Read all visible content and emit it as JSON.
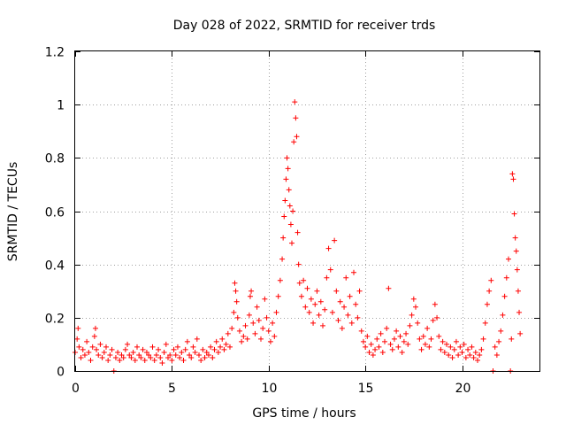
{
  "chart_data": {
    "type": "scatter",
    "title": "Day 028 of 2022, SRMTID for receiver trds",
    "xlabel": "GPS time / hours",
    "ylabel": "SRMTID / TECUs",
    "xlim": [
      0,
      24
    ],
    "ylim": [
      0,
      1.2
    ],
    "x_ticks": [
      0,
      5,
      10,
      15,
      20
    ],
    "x_tick_labels": [
      "0",
      "5",
      "10",
      "15",
      "20"
    ],
    "y_ticks": [
      0,
      0.2,
      0.4,
      0.6,
      0.8,
      1.0,
      1.2
    ],
    "y_tick_labels": [
      "0",
      "0.2",
      "0.4",
      "0.6",
      "0.8",
      "1",
      "1.2"
    ],
    "grid": true,
    "marker": "+",
    "series": [
      {
        "name": "SRMTID",
        "color": "#ff0000",
        "points": [
          [
            0.0,
            0.07
          ],
          [
            0.1,
            0.12
          ],
          [
            0.15,
            0.16
          ],
          [
            0.2,
            0.09
          ],
          [
            0.3,
            0.05
          ],
          [
            0.4,
            0.08
          ],
          [
            0.5,
            0.06
          ],
          [
            0.6,
            0.11
          ],
          [
            0.7,
            0.07
          ],
          [
            0.8,
            0.04
          ],
          [
            0.9,
            0.09
          ],
          [
            1.0,
            0.13
          ],
          [
            1.05,
            0.16
          ],
          [
            1.1,
            0.08
          ],
          [
            1.2,
            0.06
          ],
          [
            1.3,
            0.1
          ],
          [
            1.4,
            0.05
          ],
          [
            1.5,
            0.07
          ],
          [
            1.6,
            0.09
          ],
          [
            1.7,
            0.04
          ],
          [
            1.8,
            0.06
          ],
          [
            1.9,
            0.08
          ],
          [
            2.0,
            0.0
          ],
          [
            2.1,
            0.05
          ],
          [
            2.2,
            0.07
          ],
          [
            2.3,
            0.04
          ],
          [
            2.4,
            0.06
          ],
          [
            2.5,
            0.05
          ],
          [
            2.6,
            0.08
          ],
          [
            2.7,
            0.1
          ],
          [
            2.8,
            0.06
          ],
          [
            2.9,
            0.05
          ],
          [
            3.0,
            0.07
          ],
          [
            3.1,
            0.04
          ],
          [
            3.2,
            0.09
          ],
          [
            3.3,
            0.06
          ],
          [
            3.4,
            0.05
          ],
          [
            3.5,
            0.08
          ],
          [
            3.6,
            0.04
          ],
          [
            3.7,
            0.07
          ],
          [
            3.8,
            0.06
          ],
          [
            3.9,
            0.05
          ],
          [
            4.0,
            0.09
          ],
          [
            4.1,
            0.04
          ],
          [
            4.2,
            0.06
          ],
          [
            4.3,
            0.08
          ],
          [
            4.4,
            0.05
          ],
          [
            4.5,
            0.03
          ],
          [
            4.6,
            0.07
          ],
          [
            4.7,
            0.1
          ],
          [
            4.8,
            0.05
          ],
          [
            4.9,
            0.06
          ],
          [
            5.0,
            0.04
          ],
          [
            5.1,
            0.08
          ],
          [
            5.2,
            0.06
          ],
          [
            5.3,
            0.09
          ],
          [
            5.4,
            0.05
          ],
          [
            5.5,
            0.07
          ],
          [
            5.6,
            0.04
          ],
          [
            5.7,
            0.08
          ],
          [
            5.8,
            0.11
          ],
          [
            5.9,
            0.06
          ],
          [
            6.0,
            0.05
          ],
          [
            6.1,
            0.09
          ],
          [
            6.2,
            0.07
          ],
          [
            6.3,
            0.12
          ],
          [
            6.4,
            0.06
          ],
          [
            6.5,
            0.04
          ],
          [
            6.6,
            0.08
          ],
          [
            6.7,
            0.05
          ],
          [
            6.8,
            0.07
          ],
          [
            6.9,
            0.06
          ],
          [
            7.0,
            0.09
          ],
          [
            7.1,
            0.05
          ],
          [
            7.2,
            0.08
          ],
          [
            7.3,
            0.11
          ],
          [
            7.4,
            0.07
          ],
          [
            7.5,
            0.09
          ],
          [
            7.6,
            0.12
          ],
          [
            7.7,
            0.08
          ],
          [
            7.8,
            0.1
          ],
          [
            7.9,
            0.14
          ],
          [
            8.0,
            0.09
          ],
          [
            8.1,
            0.16
          ],
          [
            8.2,
            0.22
          ],
          [
            8.25,
            0.33
          ],
          [
            8.3,
            0.3
          ],
          [
            8.35,
            0.26
          ],
          [
            8.4,
            0.2
          ],
          [
            8.5,
            0.15
          ],
          [
            8.6,
            0.11
          ],
          [
            8.7,
            0.13
          ],
          [
            8.8,
            0.17
          ],
          [
            8.9,
            0.12
          ],
          [
            9.0,
            0.21
          ],
          [
            9.05,
            0.28
          ],
          [
            9.1,
            0.3
          ],
          [
            9.2,
            0.18
          ],
          [
            9.3,
            0.14
          ],
          [
            9.4,
            0.24
          ],
          [
            9.5,
            0.19
          ],
          [
            9.6,
            0.12
          ],
          [
            9.7,
            0.16
          ],
          [
            9.8,
            0.27
          ],
          [
            9.9,
            0.2
          ],
          [
            10.0,
            0.15
          ],
          [
            10.1,
            0.11
          ],
          [
            10.2,
            0.18
          ],
          [
            10.3,
            0.13
          ],
          [
            10.4,
            0.22
          ],
          [
            10.5,
            0.28
          ],
          [
            10.6,
            0.34
          ],
          [
            10.7,
            0.42
          ],
          [
            10.75,
            0.5
          ],
          [
            10.8,
            0.58
          ],
          [
            10.85,
            0.64
          ],
          [
            10.9,
            0.72
          ],
          [
            10.95,
            0.8
          ],
          [
            11.0,
            0.76
          ],
          [
            11.05,
            0.68
          ],
          [
            11.1,
            0.62
          ],
          [
            11.15,
            0.55
          ],
          [
            11.2,
            0.48
          ],
          [
            11.25,
            0.6
          ],
          [
            11.3,
            0.86
          ],
          [
            11.35,
            1.01
          ],
          [
            11.4,
            0.95
          ],
          [
            11.45,
            0.88
          ],
          [
            11.5,
            0.52
          ],
          [
            11.55,
            0.4
          ],
          [
            11.6,
            0.33
          ],
          [
            11.7,
            0.28
          ],
          [
            11.8,
            0.34
          ],
          [
            11.9,
            0.24
          ],
          [
            12.0,
            0.31
          ],
          [
            12.1,
            0.22
          ],
          [
            12.2,
            0.27
          ],
          [
            12.3,
            0.18
          ],
          [
            12.4,
            0.25
          ],
          [
            12.5,
            0.3
          ],
          [
            12.6,
            0.21
          ],
          [
            12.7,
            0.26
          ],
          [
            12.8,
            0.17
          ],
          [
            12.9,
            0.23
          ],
          [
            13.0,
            0.35
          ],
          [
            13.1,
            0.46
          ],
          [
            13.2,
            0.38
          ],
          [
            13.3,
            0.22
          ],
          [
            13.4,
            0.49
          ],
          [
            13.5,
            0.3
          ],
          [
            13.6,
            0.19
          ],
          [
            13.7,
            0.26
          ],
          [
            13.8,
            0.16
          ],
          [
            13.9,
            0.24
          ],
          [
            14.0,
            0.35
          ],
          [
            14.1,
            0.21
          ],
          [
            14.2,
            0.28
          ],
          [
            14.3,
            0.18
          ],
          [
            14.4,
            0.37
          ],
          [
            14.5,
            0.25
          ],
          [
            14.6,
            0.2
          ],
          [
            14.7,
            0.3
          ],
          [
            14.8,
            0.15
          ],
          [
            14.9,
            0.11
          ],
          [
            15.0,
            0.09
          ],
          [
            15.1,
            0.13
          ],
          [
            15.2,
            0.07
          ],
          [
            15.3,
            0.1
          ],
          [
            15.4,
            0.06
          ],
          [
            15.5,
            0.08
          ],
          [
            15.6,
            0.12
          ],
          [
            15.7,
            0.09
          ],
          [
            15.8,
            0.14
          ],
          [
            15.9,
            0.07
          ],
          [
            16.0,
            0.11
          ],
          [
            16.1,
            0.16
          ],
          [
            16.2,
            0.31
          ],
          [
            16.3,
            0.1
          ],
          [
            16.4,
            0.08
          ],
          [
            16.5,
            0.12
          ],
          [
            16.6,
            0.15
          ],
          [
            16.7,
            0.09
          ],
          [
            16.8,
            0.13
          ],
          [
            16.9,
            0.07
          ],
          [
            17.0,
            0.11
          ],
          [
            17.1,
            0.14
          ],
          [
            17.2,
            0.1
          ],
          [
            17.3,
            0.17
          ],
          [
            17.4,
            0.21
          ],
          [
            17.5,
            0.27
          ],
          [
            17.6,
            0.24
          ],
          [
            17.7,
            0.18
          ],
          [
            17.8,
            0.12
          ],
          [
            17.9,
            0.08
          ],
          [
            18.0,
            0.13
          ],
          [
            18.1,
            0.1
          ],
          [
            18.2,
            0.16
          ],
          [
            18.3,
            0.09
          ],
          [
            18.4,
            0.12
          ],
          [
            18.5,
            0.19
          ],
          [
            18.6,
            0.25
          ],
          [
            18.7,
            0.2
          ],
          [
            18.8,
            0.13
          ],
          [
            18.9,
            0.08
          ],
          [
            19.0,
            0.11
          ],
          [
            19.1,
            0.07
          ],
          [
            19.2,
            0.1
          ],
          [
            19.3,
            0.06
          ],
          [
            19.4,
            0.09
          ],
          [
            19.5,
            0.05
          ],
          [
            19.6,
            0.08
          ],
          [
            19.7,
            0.11
          ],
          [
            19.8,
            0.06
          ],
          [
            19.9,
            0.09
          ],
          [
            20.0,
            0.07
          ],
          [
            20.1,
            0.1
          ],
          [
            20.2,
            0.05
          ],
          [
            20.3,
            0.08
          ],
          [
            20.4,
            0.06
          ],
          [
            20.5,
            0.09
          ],
          [
            20.6,
            0.05
          ],
          [
            20.7,
            0.07
          ],
          [
            20.8,
            0.04
          ],
          [
            20.9,
            0.06
          ],
          [
            21.0,
            0.08
          ],
          [
            21.1,
            0.12
          ],
          [
            21.2,
            0.18
          ],
          [
            21.3,
            0.25
          ],
          [
            21.4,
            0.3
          ],
          [
            21.5,
            0.34
          ],
          [
            21.6,
            0.0
          ],
          [
            21.7,
            0.09
          ],
          [
            21.8,
            0.06
          ],
          [
            21.9,
            0.11
          ],
          [
            22.0,
            0.15
          ],
          [
            22.1,
            0.21
          ],
          [
            22.2,
            0.28
          ],
          [
            22.3,
            0.35
          ],
          [
            22.4,
            0.42
          ],
          [
            22.5,
            0.0
          ],
          [
            22.6,
            0.74
          ],
          [
            22.65,
            0.72
          ],
          [
            22.7,
            0.59
          ],
          [
            22.75,
            0.5
          ],
          [
            22.8,
            0.45
          ],
          [
            22.85,
            0.38
          ],
          [
            22.9,
            0.3
          ],
          [
            22.95,
            0.22
          ],
          [
            23.0,
            0.14
          ],
          [
            22.55,
            0.12
          ]
        ]
      }
    ]
  }
}
